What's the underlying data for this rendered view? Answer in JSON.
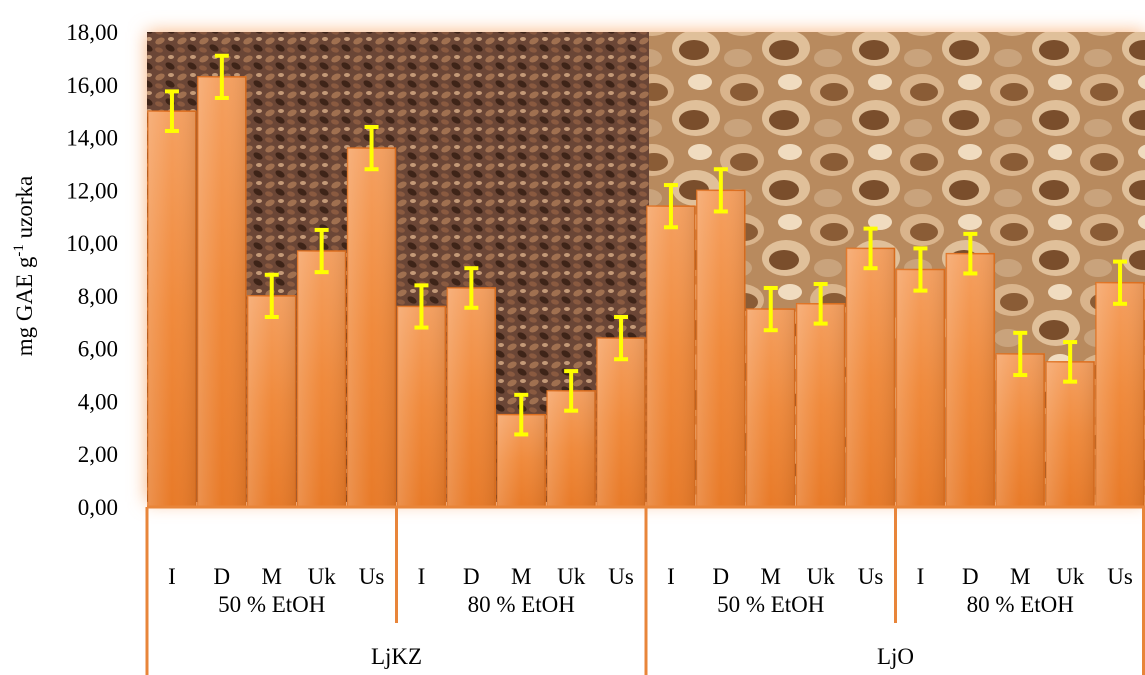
{
  "chart_data": {
    "type": "bar",
    "ylabel": "mg GAE g-1 uzorka",
    "ylabel_parts": {
      "main": "mg GAE g",
      "sup": "-1",
      "tail": " uzorka"
    },
    "ylim": [
      0,
      18
    ],
    "yticks": [
      "0,00",
      "2,00",
      "4,00",
      "6,00",
      "8,00",
      "10,00",
      "12,00",
      "14,00",
      "16,00",
      "18,00"
    ],
    "ytick_values": [
      0,
      2,
      4,
      6,
      8,
      10,
      12,
      14,
      16,
      18
    ],
    "grid": false,
    "categories": [
      "I",
      "D",
      "M",
      "Uk",
      "Us",
      "I",
      "D",
      "M",
      "Uk",
      "Us",
      "I",
      "D",
      "M",
      "Uk",
      "Us",
      "I",
      "D",
      "M",
      "Uk",
      "Us"
    ],
    "groups": [
      "50 % EtOH",
      "80 % EtOH",
      "50 % EtOH",
      "80 % EtOH"
    ],
    "outer_groups": [
      "LjKZ",
      "LjO"
    ],
    "values": [
      15.0,
      16.3,
      8.0,
      9.7,
      13.6,
      7.6,
      8.3,
      3.5,
      4.4,
      6.4,
      11.4,
      12.0,
      7.5,
      7.7,
      9.8,
      9.0,
      9.6,
      5.8,
      5.5,
      8.5
    ],
    "errors": [
      0.75,
      0.8,
      0.8,
      0.8,
      0.8,
      0.8,
      0.75,
      0.75,
      0.75,
      0.8,
      0.8,
      0.8,
      0.8,
      0.75,
      0.75,
      0.8,
      0.75,
      0.8,
      0.75,
      0.8
    ],
    "colors": {
      "bar": "#f08a3c",
      "bar_light": "#f6a965",
      "bar_dark": "#e0701f",
      "error": "#ffff00",
      "axis": "#e8853a",
      "glow": "#f9c9a0"
    }
  }
}
